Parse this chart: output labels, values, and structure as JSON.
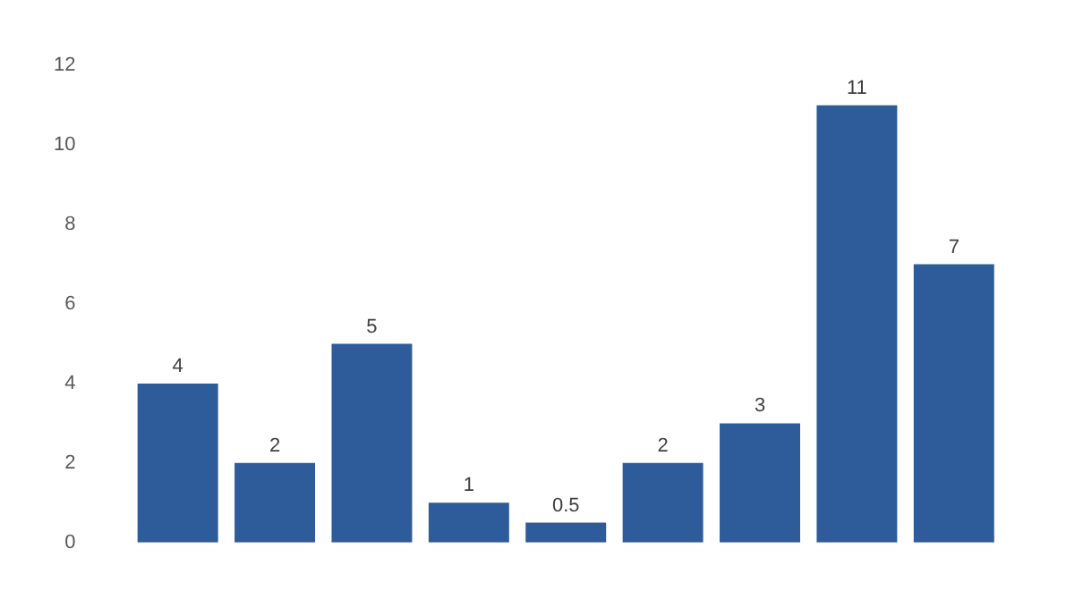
{
  "chart_data": {
    "type": "bar",
    "categories": [
      null,
      null,
      null,
      null,
      null,
      null,
      null,
      null,
      null
    ],
    "values": [
      4,
      2,
      5,
      1,
      0.5,
      2,
      3,
      11,
      7
    ],
    "color": "#2e5c9a",
    "ylim": [
      0,
      12
    ],
    "yticks": [
      0,
      2,
      4,
      6,
      8,
      10,
      12
    ],
    "grid": false,
    "legend": false,
    "data_labels": true,
    "tick_labels": "y"
  }
}
